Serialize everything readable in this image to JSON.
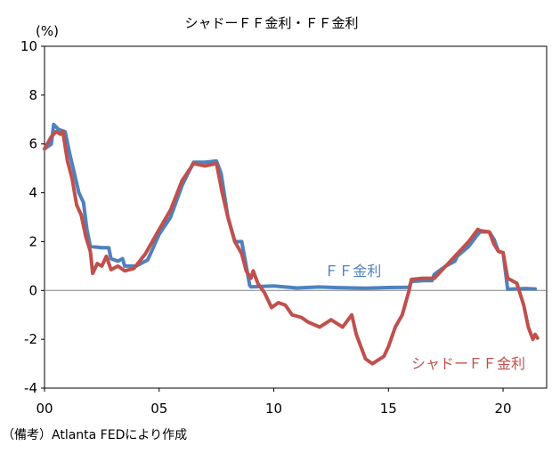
{
  "chart_data": {
    "type": "line",
    "title": "シャドーＦＦ金利・ＦＦ金利",
    "unit_label": "(%)",
    "xlabel": "",
    "ylabel": "",
    "xlim": [
      2000,
      2021.9
    ],
    "ylim": [
      -4,
      10
    ],
    "x_ticks": [
      {
        "v": 2000,
        "label": "00"
      },
      {
        "v": 2005,
        "label": "05"
      },
      {
        "v": 2010,
        "label": "10"
      },
      {
        "v": 2015,
        "label": "15"
      },
      {
        "v": 2020,
        "label": "20"
      }
    ],
    "y_ticks": [
      -4,
      -2,
      0,
      2,
      4,
      6,
      8,
      10
    ],
    "grid": false,
    "note": "（備考）Atlanta FEDにより作成",
    "series": [
      {
        "name": "ＦＦ金利",
        "color": "#4f81bd",
        "points": [
          [
            2000,
            5.8
          ],
          [
            2000.3,
            6.0
          ],
          [
            2000.4,
            6.8
          ],
          [
            2000.6,
            6.6
          ],
          [
            2000.9,
            6.5
          ],
          [
            2001.1,
            5.6
          ],
          [
            2001.3,
            4.8
          ],
          [
            2001.5,
            4.0
          ],
          [
            2001.7,
            3.6
          ],
          [
            2001.85,
            2.5
          ],
          [
            2002,
            1.8
          ],
          [
            2002.5,
            1.75
          ],
          [
            2002.8,
            1.75
          ],
          [
            2002.9,
            1.3
          ],
          [
            2003.2,
            1.2
          ],
          [
            2003.4,
            1.3
          ],
          [
            2003.5,
            1.0
          ],
          [
            2004.0,
            1.0
          ],
          [
            2004.5,
            1.25
          ],
          [
            2005.0,
            2.3
          ],
          [
            2005.5,
            3.0
          ],
          [
            2006.0,
            4.3
          ],
          [
            2006.5,
            5.25
          ],
          [
            2007.0,
            5.25
          ],
          [
            2007.5,
            5.3
          ],
          [
            2007.7,
            4.8
          ],
          [
            2008.0,
            3.0
          ],
          [
            2008.3,
            2.0
          ],
          [
            2008.6,
            2.0
          ],
          [
            2008.8,
            1.0
          ],
          [
            2008.95,
            0.2
          ],
          [
            2009,
            0.15
          ],
          [
            2010,
            0.18
          ],
          [
            2011,
            0.1
          ],
          [
            2012,
            0.14
          ],
          [
            2013,
            0.11
          ],
          [
            2014,
            0.09
          ],
          [
            2015,
            0.12
          ],
          [
            2015.9,
            0.13
          ],
          [
            2016,
            0.37
          ],
          [
            2016.5,
            0.4
          ],
          [
            2016.9,
            0.4
          ],
          [
            2017.0,
            0.66
          ],
          [
            2017.5,
            1.0
          ],
          [
            2017.9,
            1.2
          ],
          [
            2018.0,
            1.4
          ],
          [
            2018.5,
            1.8
          ],
          [
            2018.9,
            2.3
          ],
          [
            2019.0,
            2.4
          ],
          [
            2019.4,
            2.4
          ],
          [
            2019.6,
            2.1
          ],
          [
            2019.8,
            1.6
          ],
          [
            2020.0,
            1.55
          ],
          [
            2020.2,
            0.05
          ],
          [
            2021.0,
            0.08
          ],
          [
            2021.4,
            0.06
          ]
        ]
      },
      {
        "name": "シャドーＦＦ金利",
        "color": "#c0504d",
        "points": [
          [
            2000,
            5.8
          ],
          [
            2000.3,
            6.3
          ],
          [
            2000.5,
            6.5
          ],
          [
            2000.7,
            6.4
          ],
          [
            2000.8,
            6.5
          ],
          [
            2001,
            5.3
          ],
          [
            2001.2,
            4.6
          ],
          [
            2001.4,
            3.5
          ],
          [
            2001.6,
            3.1
          ],
          [
            2001.8,
            2.2
          ],
          [
            2002,
            1.6
          ],
          [
            2002.1,
            0.7
          ],
          [
            2002.3,
            1.1
          ],
          [
            2002.5,
            1.0
          ],
          [
            2002.7,
            1.4
          ],
          [
            2002.9,
            0.85
          ],
          [
            2003.2,
            1.0
          ],
          [
            2003.5,
            0.8
          ],
          [
            2003.9,
            0.9
          ],
          [
            2004.4,
            1.5
          ],
          [
            2005.0,
            2.5
          ],
          [
            2005.5,
            3.3
          ],
          [
            2006.0,
            4.5
          ],
          [
            2006.5,
            5.2
          ],
          [
            2007.0,
            5.1
          ],
          [
            2007.5,
            5.2
          ],
          [
            2007.75,
            4.0
          ],
          [
            2008.0,
            3.0
          ],
          [
            2008.3,
            2.0
          ],
          [
            2008.6,
            1.5
          ],
          [
            2008.8,
            0.8
          ],
          [
            2009.0,
            0.5
          ],
          [
            2009.1,
            0.8
          ],
          [
            2009.3,
            0.3
          ],
          [
            2009.6,
            -0.1
          ],
          [
            2009.9,
            -0.7
          ],
          [
            2010.2,
            -0.5
          ],
          [
            2010.5,
            -0.6
          ],
          [
            2010.8,
            -1.0
          ],
          [
            2011.2,
            -1.1
          ],
          [
            2011.5,
            -1.3
          ],
          [
            2012,
            -1.5
          ],
          [
            2012.5,
            -1.2
          ],
          [
            2013,
            -1.5
          ],
          [
            2013.4,
            -1.0
          ],
          [
            2013.6,
            -1.8
          ],
          [
            2014.0,
            -2.8
          ],
          [
            2014.3,
            -3.0
          ],
          [
            2014.8,
            -2.7
          ],
          [
            2015.0,
            -2.3
          ],
          [
            2015.3,
            -1.5
          ],
          [
            2015.6,
            -1.0
          ],
          [
            2015.9,
            0.0
          ],
          [
            2016.0,
            0.45
          ],
          [
            2016.5,
            0.5
          ],
          [
            2016.9,
            0.5
          ],
          [
            2017.0,
            0.5
          ],
          [
            2017.5,
            1.0
          ],
          [
            2017.9,
            1.4
          ],
          [
            2018.5,
            2.0
          ],
          [
            2018.9,
            2.5
          ],
          [
            2019.0,
            2.45
          ],
          [
            2019.4,
            2.4
          ],
          [
            2019.6,
            1.9
          ],
          [
            2019.8,
            1.6
          ],
          [
            2020.0,
            1.55
          ],
          [
            2020.2,
            0.5
          ],
          [
            2020.6,
            0.3
          ],
          [
            2020.9,
            -0.6
          ],
          [
            2021.1,
            -1.5
          ],
          [
            2021.3,
            -2.0
          ],
          [
            2021.4,
            -1.8
          ],
          [
            2021.5,
            -1.95
          ]
        ]
      }
    ],
    "labels": [
      {
        "series": 0,
        "text": "ＦＦ金利",
        "x": 2012.2,
        "y": 0.6
      },
      {
        "series": 1,
        "text": "シャドーＦＦ金利",
        "x": 2016.0,
        "y": -3.2
      }
    ]
  }
}
